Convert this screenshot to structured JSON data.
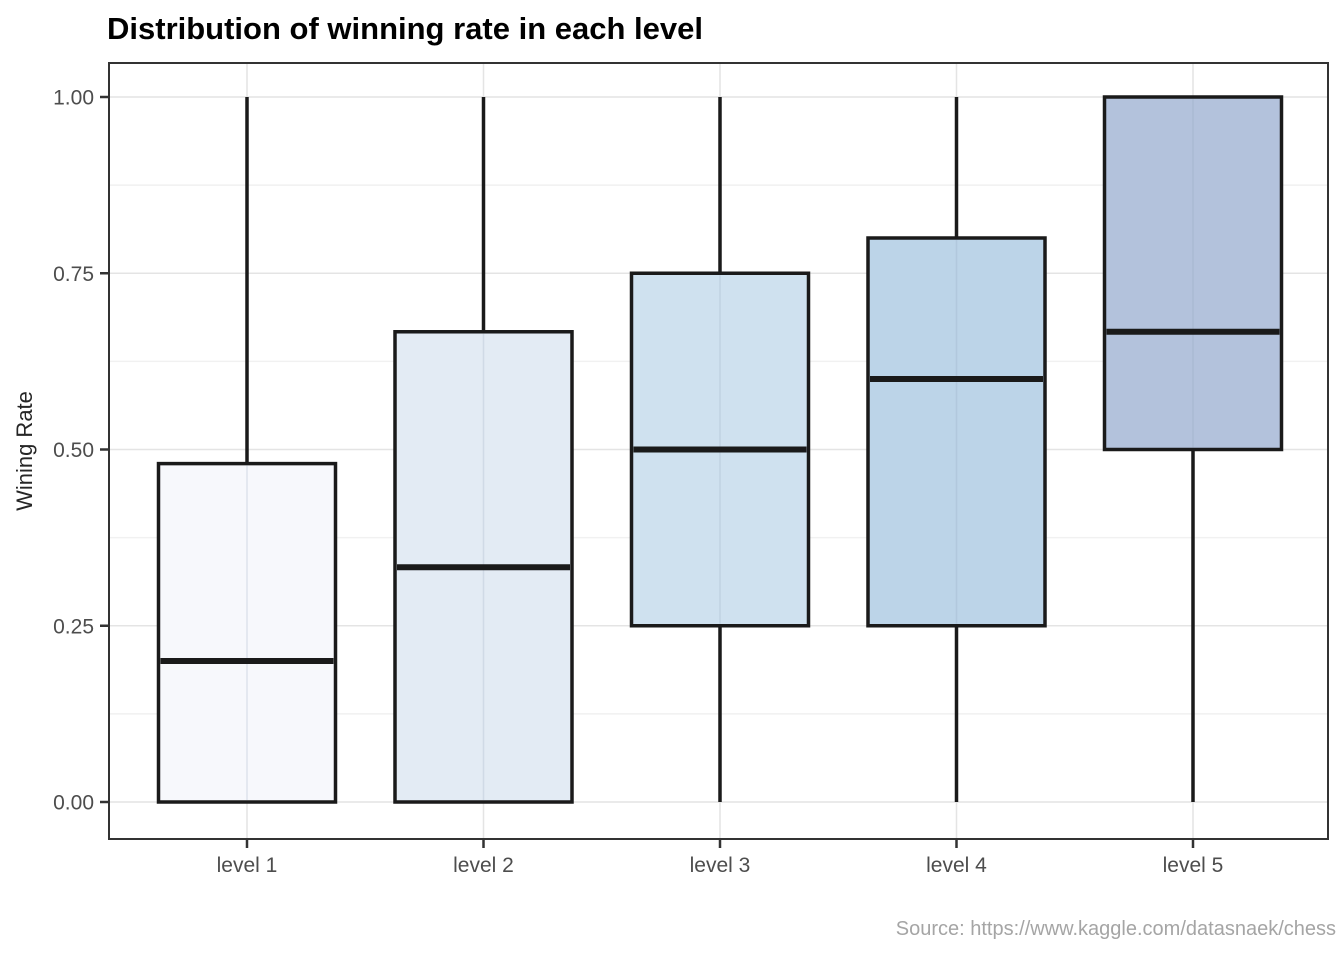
{
  "title": "Distribution of winning rate in each level",
  "source": "Source: https://www.kaggle.com/datasnaek/chess",
  "chart_data": {
    "type": "boxplot",
    "title": "Distribution of winning rate in each level",
    "xlabel": "",
    "ylabel": "Wining Rate",
    "categories": [
      "level 1",
      "level 2",
      "level 3",
      "level 4",
      "level 5"
    ],
    "ylim": [
      0,
      1
    ],
    "y_ticks": [
      0,
      0.25,
      0.5,
      0.75,
      1
    ],
    "y_tick_labels": [
      "0.00",
      "0.25",
      "0.50",
      "0.75",
      "1.00"
    ],
    "y_minor_ticks": [
      0.125,
      0.375,
      0.625,
      0.875
    ],
    "grid": {
      "major": true,
      "minor": true,
      "vertical_at_categories": true
    },
    "legend": "none",
    "series": [
      {
        "name": "level 1",
        "min": 0,
        "q1": 0,
        "median": 0.2,
        "q3": 0.48,
        "max": 1,
        "fill": "#f7f8fc"
      },
      {
        "name": "level 2",
        "min": 0,
        "q1": 0,
        "median": 0.333,
        "q3": 0.667,
        "max": 1,
        "fill": "#e3ebf4"
      },
      {
        "name": "level 3",
        "min": 0,
        "q1": 0.25,
        "median": 0.5,
        "q3": 0.75,
        "max": 1,
        "fill": "#cfe1ef"
      },
      {
        "name": "level 4",
        "min": 0,
        "q1": 0.25,
        "median": 0.6,
        "q3": 0.8,
        "max": 1,
        "fill": "#bcd4e8"
      },
      {
        "name": "level 5",
        "min": 0,
        "q1": 0.5,
        "median": 0.667,
        "q3": 1,
        "max": 1,
        "fill": "#b3c2dc"
      }
    ],
    "style": {
      "panel_background": "#ffffff",
      "panel_border": "#333333",
      "grid_major": "#e4e4e4",
      "grid_minor": "#f1f1f1",
      "box_stroke": "#1a1a1a",
      "median_stroke": "#1a1a1a",
      "whisker_stroke": "#1a1a1a",
      "tick_mark": "#333333",
      "tick_label": "#4d4d4d",
      "axis_title": "#262626",
      "title_color": "#000000",
      "source_color": "#a5a5a5"
    }
  }
}
